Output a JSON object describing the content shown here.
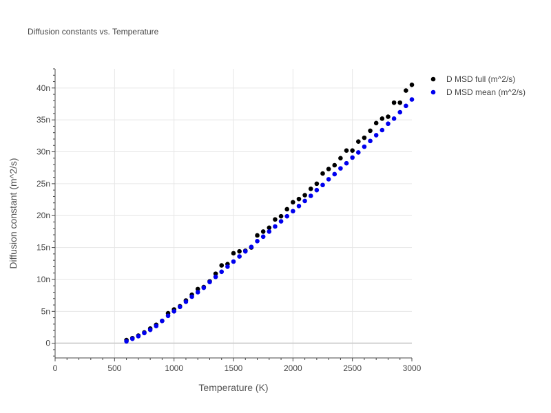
{
  "chart_data": {
    "type": "scatter",
    "title": "Diffusion constants vs. Temperature",
    "xlabel": "Temperature (K)",
    "ylabel": "Diffusion constant (m^2/s)",
    "xlim": [
      0,
      3000
    ],
    "ylim": [
      -2.3,
      43
    ],
    "x_ticks": [
      0,
      500,
      1000,
      1500,
      2000,
      2500,
      3000
    ],
    "x_tick_labels": [
      "0",
      "500",
      "1000",
      "1500",
      "2000",
      "2500",
      "3000"
    ],
    "y_ticks": [
      0,
      5,
      10,
      15,
      20,
      25,
      30,
      35,
      40
    ],
    "y_tick_labels": [
      "0",
      "5n",
      "10n",
      "15n",
      "20n",
      "25n",
      "30n",
      "35n",
      "40n"
    ],
    "grid": true,
    "legend_position": "right",
    "series": [
      {
        "name": "D MSD full (m^2/s)",
        "color": "#000000",
        "x": [
          600,
          650,
          700,
          750,
          800,
          850,
          900,
          950,
          1000,
          1050,
          1100,
          1150,
          1200,
          1250,
          1300,
          1350,
          1400,
          1450,
          1500,
          1550,
          1600,
          1650,
          1700,
          1750,
          1800,
          1850,
          1900,
          1950,
          2000,
          2050,
          2100,
          2150,
          2200,
          2250,
          2300,
          2350,
          2400,
          2450,
          2500,
          2550,
          2600,
          2650,
          2700,
          2750,
          2800,
          2850,
          2900,
          2950,
          3000
        ],
        "y": [
          0.5,
          0.8,
          1.2,
          1.7,
          2.3,
          2.9,
          3.5,
          4.7,
          5.3,
          5.8,
          6.7,
          7.6,
          8.5,
          8.8,
          9.7,
          10.9,
          12.2,
          12.4,
          14.1,
          14.4,
          14.5,
          15.0,
          16.9,
          17.5,
          18.1,
          19.4,
          19.9,
          21.0,
          22.1,
          22.6,
          23.2,
          24.2,
          25.0,
          26.6,
          27.3,
          27.9,
          29.0,
          30.2,
          30.2,
          31.6,
          32.2,
          33.3,
          34.5,
          35.2,
          35.5,
          37.7,
          37.7,
          39.6,
          40.5
        ]
      },
      {
        "name": "D MSD mean (m^2/s)",
        "color": "#0000ee",
        "x": [
          600,
          650,
          700,
          750,
          800,
          850,
          900,
          950,
          1000,
          1050,
          1100,
          1150,
          1200,
          1250,
          1300,
          1350,
          1400,
          1450,
          1500,
          1550,
          1600,
          1650,
          1700,
          1750,
          1800,
          1850,
          1900,
          1950,
          2000,
          2050,
          2100,
          2150,
          2200,
          2250,
          2300,
          2350,
          2400,
          2450,
          2500,
          2550,
          2600,
          2650,
          2700,
          2750,
          2800,
          2850,
          2900,
          2950,
          3000
        ],
        "y": [
          0.3,
          0.7,
          1.1,
          1.6,
          2.1,
          2.7,
          3.5,
          4.3,
          5.0,
          5.7,
          6.5,
          7.3,
          8.0,
          8.7,
          9.6,
          10.4,
          11.2,
          12.0,
          12.8,
          13.6,
          14.4,
          15.1,
          16.0,
          16.7,
          17.5,
          18.3,
          19.1,
          19.9,
          20.7,
          21.5,
          22.3,
          23.1,
          24.0,
          24.8,
          25.7,
          26.5,
          27.4,
          28.2,
          29.1,
          29.9,
          30.8,
          31.7,
          32.6,
          33.4,
          34.4,
          35.2,
          36.2,
          37.2,
          38.2
        ]
      }
    ]
  }
}
